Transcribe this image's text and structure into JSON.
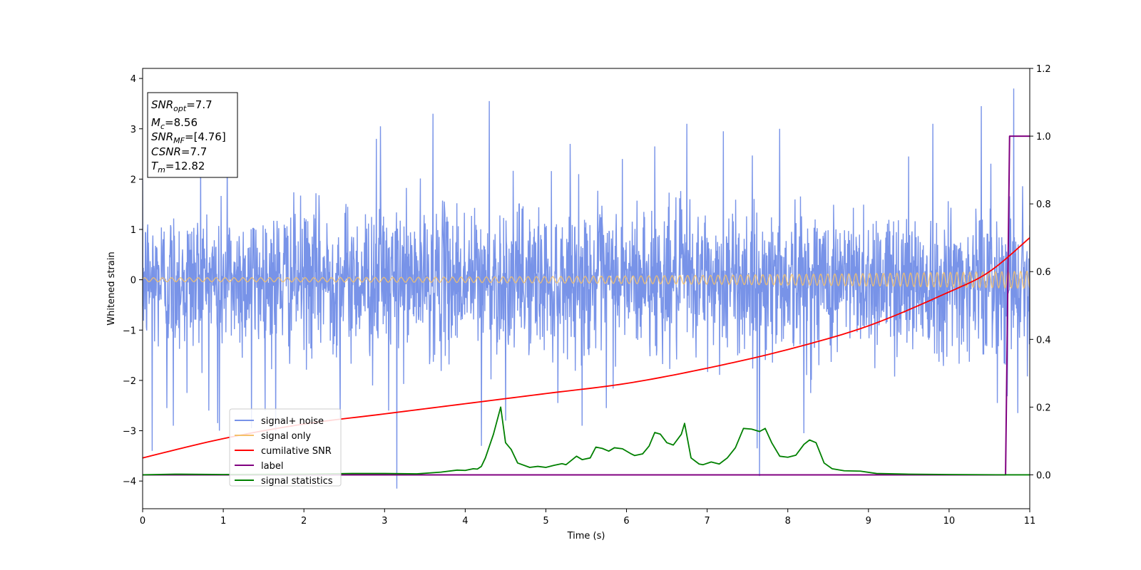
{
  "chart_data": {
    "type": "line",
    "xlabel": "Time (s)",
    "ylabel": "Whitened strain",
    "xlim": [
      0,
      11
    ],
    "ylim_left": [
      -4.55,
      4.2
    ],
    "ylim_right": [
      -0.1,
      1.2
    ],
    "xticks": [
      "0",
      "1",
      "2",
      "3",
      "4",
      "5",
      "6",
      "7",
      "8",
      "9",
      "10",
      "11"
    ],
    "yticks_left": [
      "−4",
      "−3",
      "−2",
      "−1",
      "0",
      "1",
      "2",
      "3",
      "4"
    ],
    "yticks_right": [
      "0.0",
      "0.2",
      "0.4",
      "0.6",
      "0.8",
      "1.0",
      "1.2"
    ],
    "grid": false,
    "legend_position": "lower-left",
    "series": [
      {
        "name": "signal+ noise",
        "color": "#7893e8",
        "axis": "left",
        "kind": "noise",
        "band_core": 1.25,
        "spikes": [
          [
            0.12,
            -3.4
          ],
          [
            0.3,
            -2.55
          ],
          [
            0.38,
            -2.9
          ],
          [
            0.55,
            -2.25
          ],
          [
            0.72,
            2.5
          ],
          [
            0.93,
            -2.85
          ],
          [
            0.95,
            -3.0
          ],
          [
            1.05,
            2.6
          ],
          [
            1.35,
            -2.95
          ],
          [
            1.65,
            -3.0
          ],
          [
            2.45,
            -2.75
          ],
          [
            2.85,
            -2.1
          ],
          [
            2.9,
            2.8
          ],
          [
            2.95,
            3.05
          ],
          [
            3.05,
            -2.6
          ],
          [
            3.15,
            -4.15
          ],
          [
            3.6,
            3.3
          ],
          [
            4.2,
            -3.3
          ],
          [
            4.3,
            3.55
          ],
          [
            4.5,
            -2.8
          ],
          [
            5.15,
            -2.45
          ],
          [
            5.3,
            2.7
          ],
          [
            5.45,
            -2.9
          ],
          [
            5.75,
            -2.55
          ],
          [
            5.95,
            2.4
          ],
          [
            6.35,
            2.65
          ],
          [
            6.75,
            3.1
          ],
          [
            7.2,
            2.95
          ],
          [
            7.62,
            -3.35
          ],
          [
            7.65,
            -3.9
          ],
          [
            7.9,
            3.0
          ],
          [
            8.2,
            -3.05
          ],
          [
            9.5,
            2.45
          ],
          [
            9.8,
            3.1
          ],
          [
            10.4,
            3.45
          ],
          [
            10.6,
            -2.45
          ],
          [
            10.8,
            3.8
          ],
          [
            10.85,
            -2.65
          ]
        ]
      },
      {
        "name": "signal only",
        "color": "#f5c16b",
        "axis": "left",
        "kind": "chirp",
        "amplitude_start": 0.04,
        "amplitude_end": 0.17
      },
      {
        "name": "cumilative SNR",
        "color": "#ff0000",
        "axis": "right",
        "points": [
          [
            0,
            0.05
          ],
          [
            1,
            0.107
          ],
          [
            2,
            0.15
          ],
          [
            3,
            0.18
          ],
          [
            4,
            0.21
          ],
          [
            5,
            0.24
          ],
          [
            6,
            0.27
          ],
          [
            7,
            0.315
          ],
          [
            8,
            0.37
          ],
          [
            9,
            0.44
          ],
          [
            10,
            0.54
          ],
          [
            10.5,
            0.6
          ],
          [
            11,
            0.7
          ]
        ]
      },
      {
        "name": "label",
        "color": "#800080",
        "axis": "right",
        "points": [
          [
            0,
            0.0
          ],
          [
            10.7,
            0.0
          ],
          [
            10.75,
            1.0
          ],
          [
            11,
            1.0
          ]
        ]
      },
      {
        "name": "signal statistics",
        "color": "#008000",
        "axis": "right",
        "points": [
          [
            0,
            0.0
          ],
          [
            0.4,
            0.002
          ],
          [
            1.0,
            0.001
          ],
          [
            2.0,
            0.002
          ],
          [
            2.6,
            0.004
          ],
          [
            3.0,
            0.004
          ],
          [
            3.4,
            0.003
          ],
          [
            3.7,
            0.008
          ],
          [
            3.9,
            0.014
          ],
          [
            4.0,
            0.013
          ],
          [
            4.1,
            0.018
          ],
          [
            4.15,
            0.017
          ],
          [
            4.2,
            0.025
          ],
          [
            4.25,
            0.05
          ],
          [
            4.35,
            0.12
          ],
          [
            4.44,
            0.2
          ],
          [
            4.5,
            0.095
          ],
          [
            4.57,
            0.075
          ],
          [
            4.65,
            0.035
          ],
          [
            4.8,
            0.022
          ],
          [
            4.9,
            0.025
          ],
          [
            5.0,
            0.022
          ],
          [
            5.1,
            0.028
          ],
          [
            5.2,
            0.033
          ],
          [
            5.25,
            0.03
          ],
          [
            5.38,
            0.055
          ],
          [
            5.45,
            0.045
          ],
          [
            5.55,
            0.05
          ],
          [
            5.62,
            0.082
          ],
          [
            5.7,
            0.078
          ],
          [
            5.78,
            0.07
          ],
          [
            5.85,
            0.08
          ],
          [
            5.95,
            0.077
          ],
          [
            6.05,
            0.063
          ],
          [
            6.1,
            0.057
          ],
          [
            6.2,
            0.062
          ],
          [
            6.28,
            0.085
          ],
          [
            6.35,
            0.125
          ],
          [
            6.42,
            0.12
          ],
          [
            6.5,
            0.095
          ],
          [
            6.58,
            0.088
          ],
          [
            6.68,
            0.12
          ],
          [
            6.72,
            0.152
          ],
          [
            6.8,
            0.05
          ],
          [
            6.9,
            0.032
          ],
          [
            6.95,
            0.03
          ],
          [
            7.05,
            0.038
          ],
          [
            7.15,
            0.032
          ],
          [
            7.25,
            0.05
          ],
          [
            7.35,
            0.08
          ],
          [
            7.45,
            0.137
          ],
          [
            7.55,
            0.135
          ],
          [
            7.65,
            0.128
          ],
          [
            7.72,
            0.137
          ],
          [
            7.8,
            0.095
          ],
          [
            7.9,
            0.055
          ],
          [
            8.0,
            0.052
          ],
          [
            8.1,
            0.058
          ],
          [
            8.2,
            0.09
          ],
          [
            8.27,
            0.103
          ],
          [
            8.35,
            0.095
          ],
          [
            8.45,
            0.035
          ],
          [
            8.55,
            0.018
          ],
          [
            8.7,
            0.012
          ],
          [
            8.9,
            0.011
          ],
          [
            9.1,
            0.004
          ],
          [
            9.5,
            0.002
          ],
          [
            10.0,
            0.001
          ],
          [
            10.7,
            0.0
          ],
          [
            11.0,
            0.0
          ]
        ]
      }
    ],
    "annotation": {
      "lines": [
        {
          "label": "SNR",
          "sub": "opt",
          "value": "=7.7"
        },
        {
          "label": "M",
          "sub": "c",
          "value": "=8.56"
        },
        {
          "label": "SNR",
          "sub": "MF",
          "value": "=[4.76]"
        },
        {
          "label": "CSNR",
          "sub": "",
          "value": "=7.7"
        },
        {
          "label": "T",
          "sub": "m",
          "value": "=12.82"
        }
      ]
    }
  }
}
